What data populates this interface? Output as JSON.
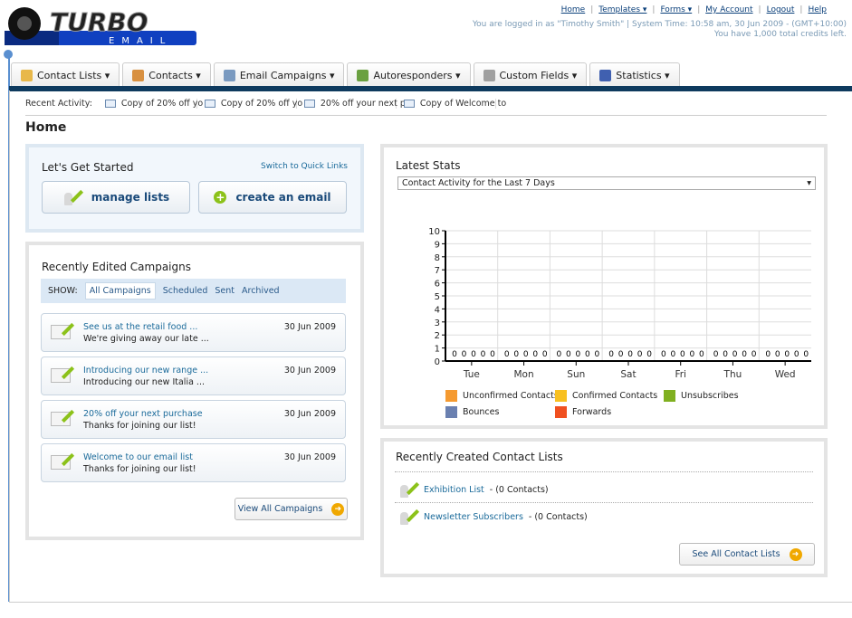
{
  "logo": {
    "text": "TURBO EMAIL"
  },
  "top_links": [
    "Home",
    "Templates ▾",
    "Forms ▾",
    "My Account",
    "Logout",
    "Help"
  ],
  "login_info": "You are logged in as \"Timothy Smith\" | System Time: 10:58 am, 30 Jun 2009 - (GMT+10:00)",
  "credits_info": "You have 1,000 total credits left.",
  "tabs": [
    {
      "label": "Contact Lists ▾",
      "icon": "contact-lists-icon",
      "color": "#e8b84a"
    },
    {
      "label": "Contacts ▾",
      "icon": "contacts-icon",
      "color": "#d89040"
    },
    {
      "label": "Email Campaigns ▾",
      "icon": "envelope-icon",
      "color": "#7a9ac0"
    },
    {
      "label": "Autoresponders ▾",
      "icon": "autoresponder-icon",
      "color": "#6aa040"
    },
    {
      "label": "Custom Fields ▾",
      "icon": "custom-fields-icon",
      "color": "#a0a0a0"
    },
    {
      "label": "Statistics ▾",
      "icon": "statistics-icon",
      "color": "#4060b0"
    }
  ],
  "recent_activity": {
    "label": "Recent Activity:",
    "items": [
      "Copy of 20% off yo",
      "Copy of 20% off yo",
      "20% off your next p",
      "Copy of Welcome to"
    ]
  },
  "page_title": "Home",
  "get_started": {
    "title": "Let's Get Started",
    "switch_link": "Switch to Quick Links",
    "manage_lists": "manage lists",
    "create_email": "create an email"
  },
  "recent_campaigns": {
    "title": "Recently Edited Campaigns",
    "show_label": "SHOW:",
    "filters": [
      "All Campaigns",
      "Scheduled",
      "Sent",
      "Archived"
    ],
    "items": [
      {
        "title": "See us at the retail food ...",
        "desc": "We're giving away our late ...",
        "date": "30 Jun 2009"
      },
      {
        "title": "Introducing our new range ...",
        "desc": "Introducing our new Italia ...",
        "date": "30 Jun 2009"
      },
      {
        "title": "20% off your next purchase",
        "desc": "Thanks for joining our list!",
        "date": "30 Jun 2009"
      },
      {
        "title": "Welcome to our email list",
        "desc": "Thanks for joining our list!",
        "date": "30 Jun 2009"
      }
    ],
    "view_all": "View All Campaigns"
  },
  "latest_stats": {
    "title": "Latest Stats",
    "select_value": "Contact Activity for the Last 7 Days"
  },
  "chart_data": {
    "type": "bar",
    "categories": [
      "Tue",
      "Mon",
      "Sun",
      "Sat",
      "Fri",
      "Thu",
      "Wed"
    ],
    "ylim": [
      0,
      10
    ],
    "yticks": [
      0,
      1,
      2,
      3,
      4,
      5,
      6,
      7,
      8,
      9,
      10
    ],
    "grid": true,
    "legend": "bottom",
    "series": [
      {
        "name": "Unconfirmed Contacts",
        "color": "#f59a30",
        "values": [
          0,
          0,
          0,
          0,
          0,
          0,
          0
        ]
      },
      {
        "name": "Confirmed Contacts",
        "color": "#f8c020",
        "values": [
          0,
          0,
          0,
          0,
          0,
          0,
          0
        ]
      },
      {
        "name": "Unsubscribes",
        "color": "#80b020",
        "values": [
          0,
          0,
          0,
          0,
          0,
          0,
          0
        ]
      },
      {
        "name": "Bounces",
        "color": "#6a80b0",
        "values": [
          0,
          0,
          0,
          0,
          0,
          0,
          0
        ]
      },
      {
        "name": "Forwards",
        "color": "#f05020",
        "values": [
          0,
          0,
          0,
          0,
          0,
          0,
          0
        ]
      }
    ]
  },
  "recent_lists": {
    "title": "Recently Created Contact Lists",
    "items": [
      {
        "name": "Exhibition List",
        "count": " - (0 Contacts)"
      },
      {
        "name": "Newsletter Subscribers",
        "count": " - (0 Contacts)"
      }
    ],
    "see_all": "See All Contact Lists"
  }
}
